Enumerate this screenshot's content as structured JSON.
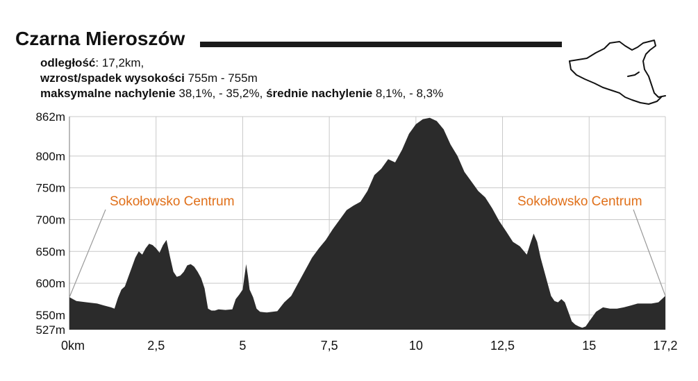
{
  "title": "Czarna Mieroszów",
  "stats": {
    "distance_label": "odległość",
    "distance_value": ": 17,2km,",
    "elevation_label": "wzrost/spadek wysokości",
    "elevation_value": " 755m - 755m",
    "max_slope_label": "maksymalne nachylenie",
    "max_slope_value": " 38,1%, - 35,2%, ",
    "avg_slope_label": "średnie nachylenie",
    "avg_slope_value": " 8,1%, - 8,3%"
  },
  "colors": {
    "profile_fill": "#2b2b2b",
    "annotation": "#e0701a",
    "grid": "#c8c8c8"
  },
  "chart_data": {
    "type": "area",
    "title": "Czarna Mieroszów",
    "xlabel": "",
    "ylabel": "",
    "xlim": [
      0,
      17.2
    ],
    "ylim": [
      527,
      862
    ],
    "grid": true,
    "x_ticks": [
      0,
      2.5,
      5,
      7.5,
      10,
      12.5,
      15,
      17.2
    ],
    "x_tick_labels": [
      "0km",
      "2,5",
      "5",
      "7,5",
      "10",
      "12,5",
      "15",
      "17,2"
    ],
    "y_ticks": [
      527,
      550,
      600,
      650,
      700,
      750,
      800,
      862
    ],
    "y_tick_labels": [
      "527m",
      "550m",
      "600m",
      "650m",
      "700m",
      "750m",
      "800m",
      "862m"
    ],
    "annotations": [
      {
        "text": "Sokołowsko Centrum",
        "x": 0
      },
      {
        "text": "Sokołowsko Centrum",
        "x": 17.2
      }
    ],
    "series": [
      {
        "x": [
          0,
          0.2,
          0.5,
          0.8,
          1.0,
          1.2,
          1.3,
          1.4,
          1.5,
          1.6,
          1.7,
          1.8,
          1.9,
          2.0,
          2.1,
          2.2,
          2.3,
          2.4,
          2.5,
          2.6,
          2.7,
          2.8,
          2.9,
          3.0,
          3.1,
          3.2,
          3.3,
          3.4,
          3.5,
          3.6,
          3.7,
          3.8,
          3.9,
          4.0,
          4.1,
          4.2,
          4.3,
          4.5,
          4.7,
          4.8,
          4.9,
          5.0,
          5.05,
          5.1,
          5.15,
          5.2,
          5.3,
          5.4,
          5.5,
          5.7,
          6.0,
          6.2,
          6.4,
          6.6,
          6.8,
          7.0,
          7.2,
          7.4,
          7.6,
          7.8,
          8.0,
          8.2,
          8.4,
          8.6,
          8.8,
          9.0,
          9.2,
          9.4,
          9.6,
          9.8,
          10.0,
          10.2,
          10.4,
          10.6,
          10.8,
          11.0,
          11.2,
          11.4,
          11.6,
          11.8,
          12.0,
          12.2,
          12.4,
          12.6,
          12.8,
          13.0,
          13.2,
          13.3,
          13.4,
          13.5,
          13.6,
          13.7,
          13.8,
          13.9,
          14.0,
          14.1,
          14.2,
          14.3,
          14.4,
          14.5,
          14.6,
          14.7,
          14.8,
          14.9,
          15.0,
          15.2,
          15.4,
          15.6,
          15.8,
          16.0,
          16.2,
          16.4,
          16.6,
          16.8,
          17.0,
          17.2
        ],
        "y": [
          578,
          572,
          570,
          568,
          565,
          562,
          560,
          577,
          590,
          595,
          610,
          625,
          640,
          650,
          645,
          655,
          662,
          660,
          655,
          648,
          660,
          668,
          642,
          618,
          610,
          612,
          618,
          628,
          630,
          626,
          618,
          608,
          592,
          560,
          557,
          557,
          559,
          558,
          559,
          575,
          582,
          590,
          610,
          630,
          612,
          590,
          578,
          560,
          555,
          554,
          556,
          570,
          580,
          600,
          620,
          640,
          655,
          668,
          685,
          700,
          715,
          722,
          728,
          745,
          770,
          780,
          795,
          790,
          810,
          835,
          850,
          858,
          860,
          855,
          842,
          818,
          800,
          775,
          760,
          745,
          735,
          718,
          698,
          682,
          665,
          658,
          645,
          662,
          678,
          665,
          640,
          620,
          600,
          580,
          572,
          570,
          575,
          570,
          555,
          540,
          535,
          532,
          530,
          532,
          540,
          555,
          562,
          560,
          560,
          562,
          565,
          568,
          568,
          568,
          570,
          580
        ]
      }
    ]
  }
}
